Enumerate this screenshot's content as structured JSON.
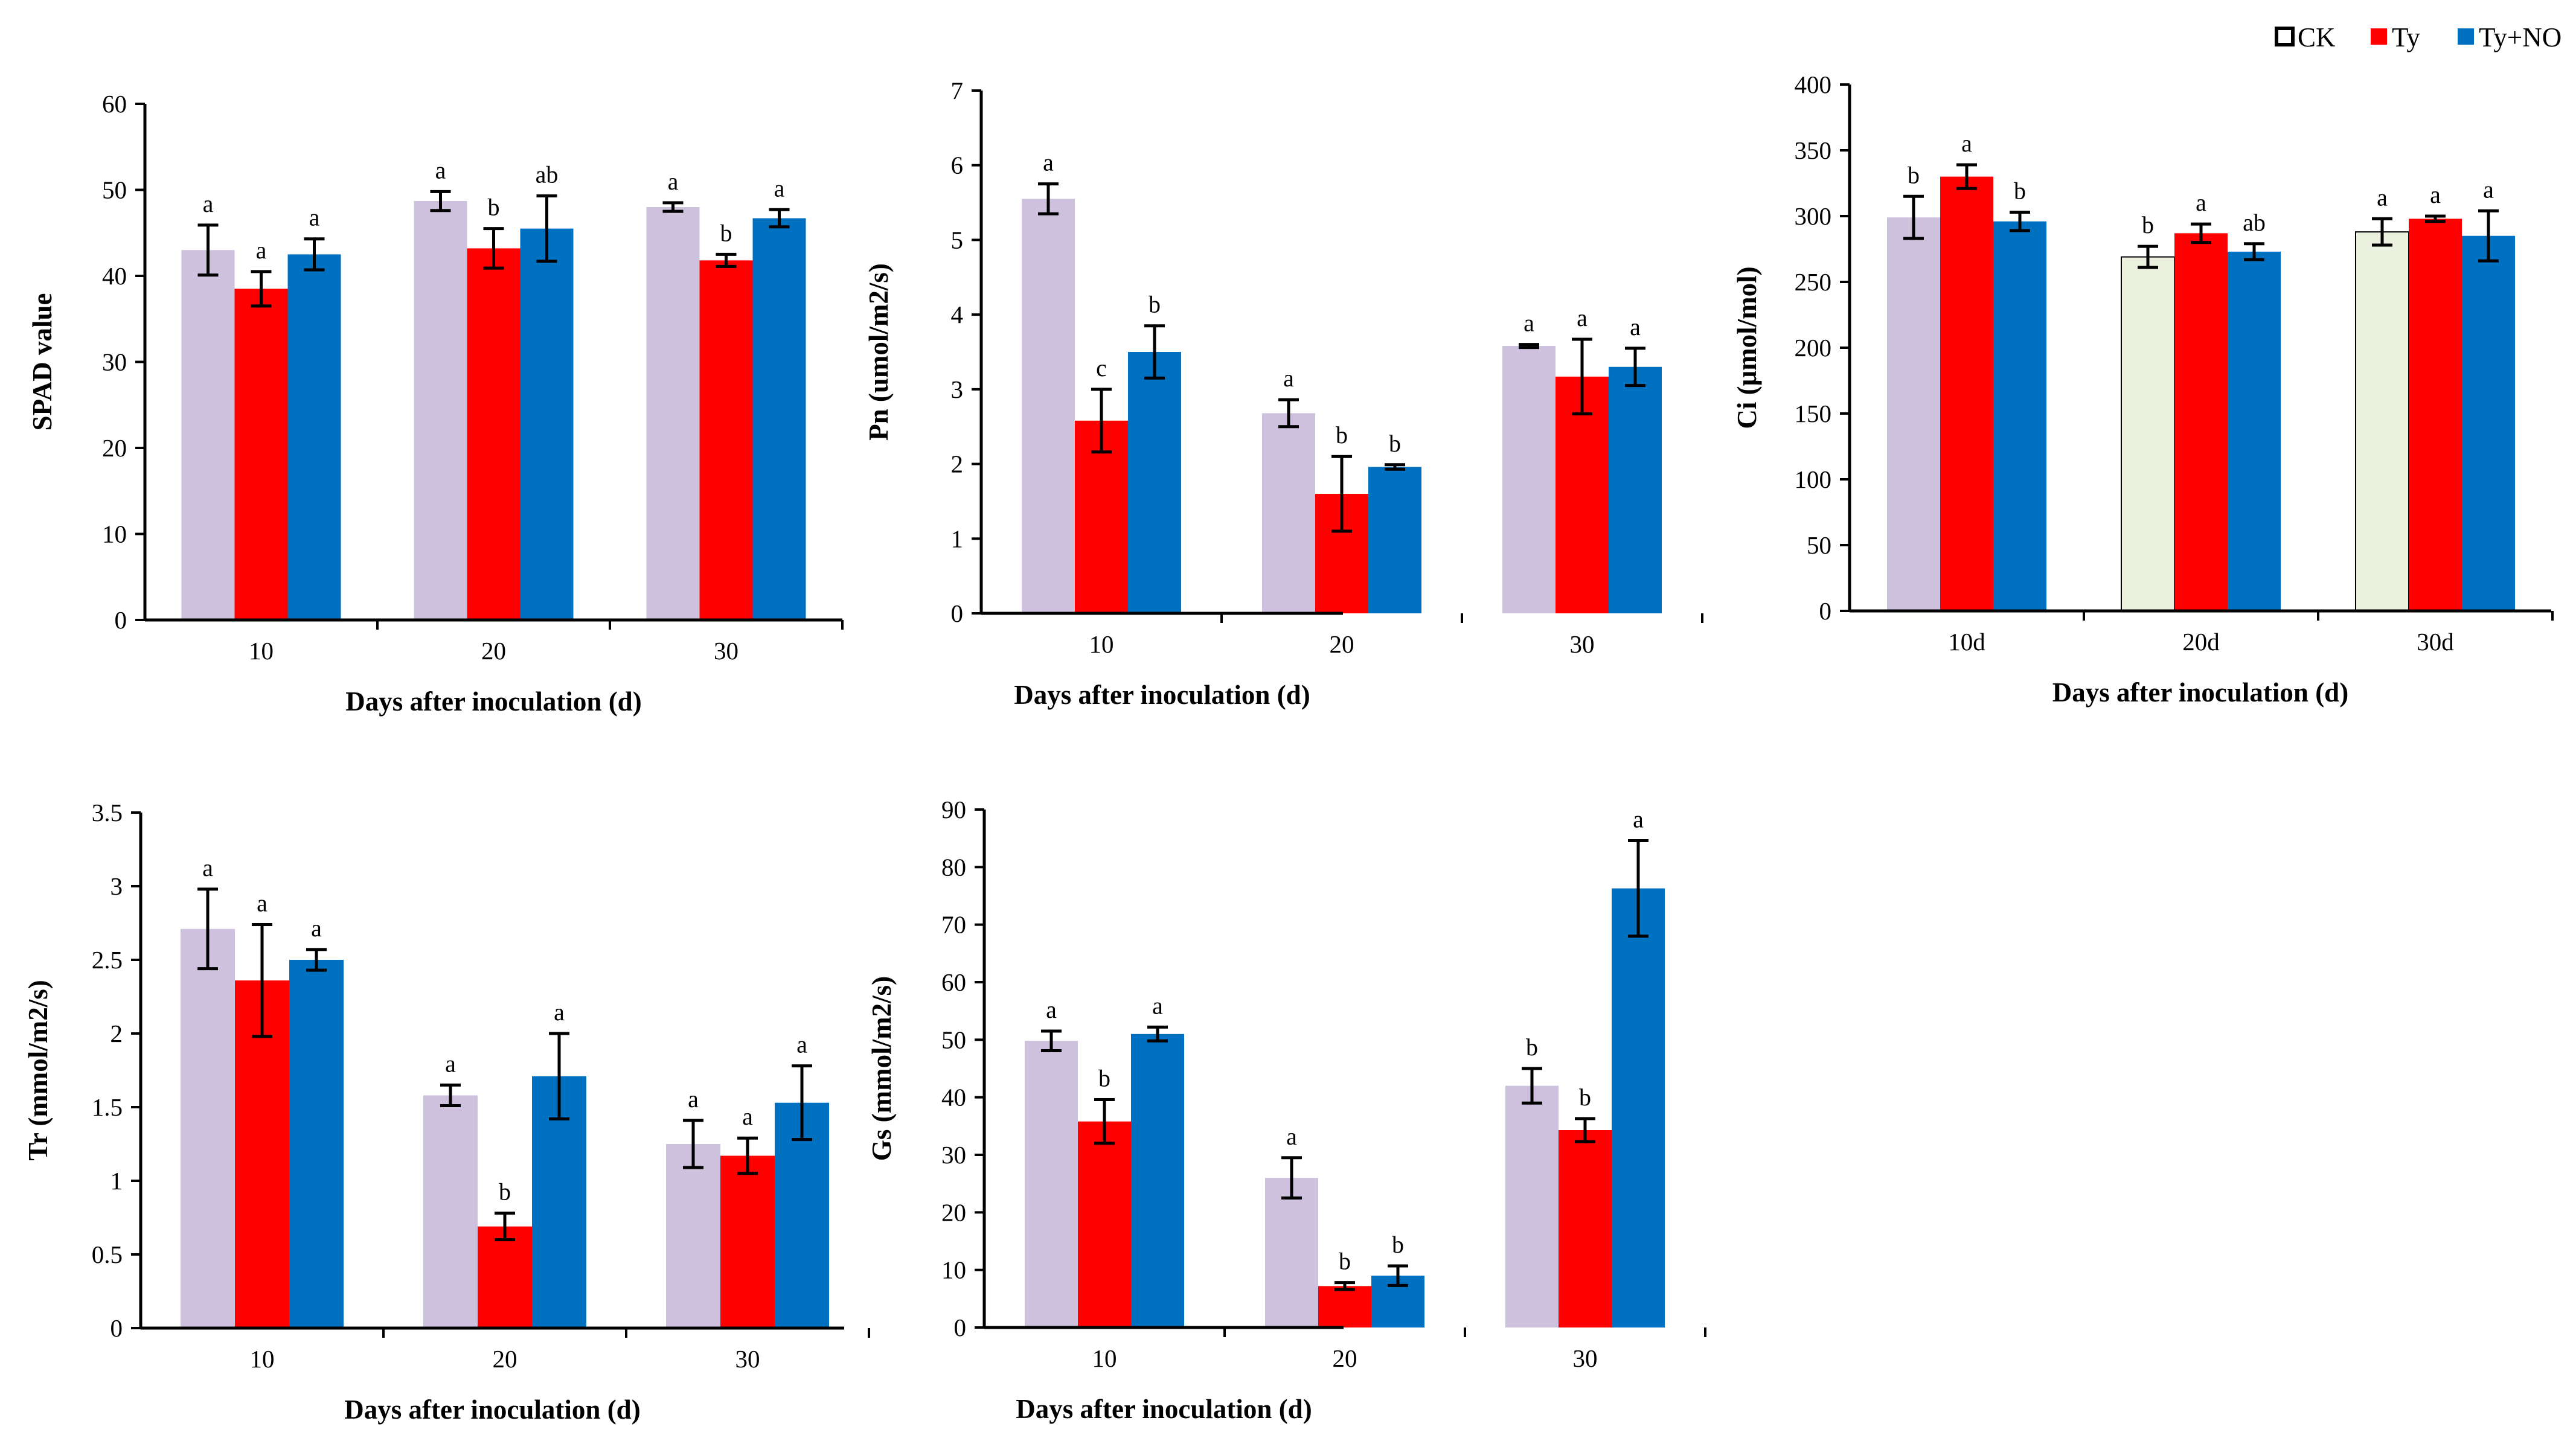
{
  "legend": [
    {
      "label": "CK",
      "color": "#ffffff"
    },
    {
      "label": "Ty",
      "color": "#ff0000"
    },
    {
      "label": "Ty+NO",
      "color": "#0070c0"
    }
  ],
  "colors": {
    "ck": "#cdc1de",
    "ck_ci_later": "#ebf1de",
    "ty": "#ff0000",
    "tyno": "#0070c0",
    "axis": "#000000"
  },
  "chart_data": [
    {
      "type": "bar",
      "id": "spad",
      "ylabel": "SPAD value",
      "xlabel": "Days after inoculation (d)",
      "categories": [
        "10",
        "20",
        "30"
      ],
      "ylim": [
        0,
        60
      ],
      "yticks": [
        "0",
        "10",
        "20",
        "30",
        "40",
        "50",
        "60"
      ],
      "series": [
        {
          "name": "CK",
          "values": [
            43.0,
            48.7,
            48.0
          ],
          "errors": [
            2.9,
            1.1,
            0.5
          ],
          "letters": [
            "a",
            "a",
            "a"
          ]
        },
        {
          "name": "Ty",
          "values": [
            38.5,
            43.2,
            41.8
          ],
          "errors": [
            2.0,
            2.3,
            0.7
          ],
          "letters": [
            "a",
            "b",
            "b"
          ]
        },
        {
          "name": "Ty+NO",
          "values": [
            42.5,
            45.5,
            46.7
          ],
          "errors": [
            1.8,
            3.8,
            1.0
          ],
          "letters": [
            "a",
            "ab",
            "a"
          ]
        }
      ]
    },
    {
      "type": "bar",
      "id": "pn",
      "ylabel": "Pn (umol/m2/s)",
      "xlabel": "Days after inoculation (d)",
      "categories": [
        "10",
        "20",
        "30"
      ],
      "ylim": [
        0,
        7
      ],
      "yticks": [
        "0",
        "1",
        "2",
        "3",
        "4",
        "5",
        "6",
        "7"
      ],
      "series": [
        {
          "name": "CK",
          "values": [
            5.55,
            2.68,
            3.58
          ],
          "errors": [
            0.2,
            0.18,
            0.02
          ],
          "letters": [
            "a",
            "a",
            "a"
          ]
        },
        {
          "name": "Ty",
          "values": [
            2.58,
            1.6,
            3.17
          ],
          "errors": [
            0.42,
            0.5,
            0.5
          ],
          "letters": [
            "c",
            "b",
            "a"
          ]
        },
        {
          "name": "Ty+NO",
          "values": [
            3.5,
            1.96,
            3.3
          ],
          "errors": [
            0.35,
            0.03,
            0.25
          ],
          "letters": [
            "b",
            "b",
            "a"
          ]
        }
      ]
    },
    {
      "type": "bar",
      "id": "ci",
      "ylabel": "Ci (μmol/mol)",
      "xlabel": "Days after inoculation (d)",
      "categories": [
        "10d",
        "20d",
        "30d"
      ],
      "ylim": [
        0,
        400
      ],
      "yticks": [
        "0",
        "50",
        "100",
        "150",
        "200",
        "250",
        "300",
        "350",
        "400"
      ],
      "series": [
        {
          "name": "CK",
          "values": [
            299,
            269,
            288
          ],
          "errors": [
            16,
            8,
            10
          ],
          "letters": [
            "b",
            "b",
            "a"
          ]
        },
        {
          "name": "Ty",
          "values": [
            330,
            287,
            298
          ],
          "errors": [
            9,
            7,
            2
          ],
          "letters": [
            "a",
            "a",
            "a"
          ]
        },
        {
          "name": "Ty+NO",
          "values": [
            296,
            273,
            285
          ],
          "errors": [
            7,
            6,
            19
          ],
          "letters": [
            "b",
            "ab",
            "a"
          ]
        }
      ]
    },
    {
      "type": "bar",
      "id": "tr",
      "ylabel": "Tr (mmol/m2/s)",
      "xlabel": "Days after inoculation (d)",
      "categories": [
        "10",
        "20",
        "30"
      ],
      "ylim": [
        0,
        3.5
      ],
      "yticks": [
        "0",
        "0.5",
        "1",
        "1.5",
        "2",
        "2.5",
        "3",
        "3.5"
      ],
      "series": [
        {
          "name": "CK",
          "values": [
            2.71,
            1.58,
            1.25
          ],
          "errors": [
            0.27,
            0.07,
            0.16
          ],
          "letters": [
            "a",
            "a",
            "a"
          ]
        },
        {
          "name": "Ty",
          "values": [
            2.36,
            0.69,
            1.17
          ],
          "errors": [
            0.38,
            0.09,
            0.12
          ],
          "letters": [
            "a",
            "b",
            "a"
          ]
        },
        {
          "name": "Ty+NO",
          "values": [
            2.5,
            1.71,
            1.53
          ],
          "errors": [
            0.07,
            0.29,
            0.25
          ],
          "letters": [
            "a",
            "a",
            "a"
          ]
        }
      ]
    },
    {
      "type": "bar",
      "id": "gs",
      "ylabel": "Gs (mmol/m2/s)",
      "xlabel": "Days after inoculation (d)",
      "categories": [
        "10",
        "20",
        "30"
      ],
      "ylim": [
        0,
        90
      ],
      "yticks": [
        "0",
        "10",
        "20",
        "30",
        "40",
        "50",
        "60",
        "70",
        "80",
        "90"
      ],
      "series": [
        {
          "name": "CK",
          "values": [
            49.8,
            26.0,
            42.0
          ],
          "errors": [
            1.7,
            3.5,
            3.0
          ],
          "letters": [
            "a",
            "a",
            "b"
          ]
        },
        {
          "name": "Ty",
          "values": [
            35.8,
            7.2,
            34.3
          ],
          "errors": [
            3.8,
            0.6,
            2.0
          ],
          "letters": [
            "b",
            "b",
            "b"
          ]
        },
        {
          "name": "Ty+NO",
          "values": [
            51.0,
            9.0,
            76.3
          ],
          "errors": [
            1.2,
            1.7,
            8.3
          ],
          "letters": [
            "a",
            "b",
            "a"
          ]
        }
      ]
    }
  ]
}
